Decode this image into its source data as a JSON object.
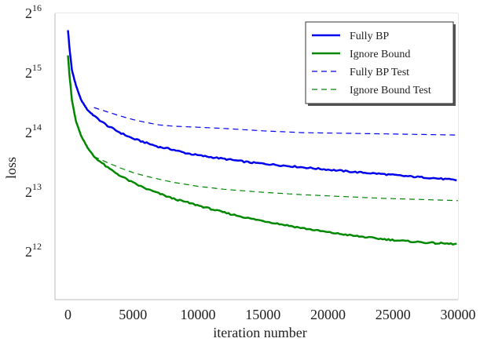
{
  "chart_data": {
    "type": "line",
    "xlabel": "iteration number",
    "ylabel": "loss",
    "xlim": [
      -1000,
      30000
    ],
    "ylim_log2": [
      11.2,
      16
    ],
    "y_scale": "log2",
    "grid": true,
    "legend_position": "top-right",
    "x_ticks": [
      0,
      5000,
      10000,
      15000,
      20000,
      25000,
      30000
    ],
    "x_tick_labels": [
      "0",
      "5000",
      "10000",
      "15000",
      "20000",
      "25000",
      "30000"
    ],
    "y_ticks_log2": [
      12,
      13,
      14,
      15,
      16
    ],
    "y_tick_labels": [
      {
        "base": "2",
        "exp": "12"
      },
      {
        "base": "2",
        "exp": "13"
      },
      {
        "base": "2",
        "exp": "14"
      },
      {
        "base": "2",
        "exp": "15"
      },
      {
        "base": "2",
        "exp": "16"
      }
    ],
    "series": [
      {
        "name": "Fully BP",
        "color": "#0000ee",
        "style": "solid",
        "x": [
          0,
          100,
          300,
          600,
          1000,
          1500,
          2000,
          3000,
          4000,
          5000,
          6000,
          7000,
          8000,
          9000,
          10000,
          12000,
          14000,
          16000,
          18000,
          20000,
          22000,
          24000,
          26000,
          28000,
          30000
        ],
        "y_log2": [
          15.72,
          15.45,
          15.05,
          14.8,
          14.55,
          14.38,
          14.28,
          14.12,
          14.0,
          13.9,
          13.83,
          13.76,
          13.72,
          13.66,
          13.62,
          13.56,
          13.5,
          13.46,
          13.42,
          13.38,
          13.34,
          13.31,
          13.27,
          13.24,
          13.2
        ]
      },
      {
        "name": "Ignore Bound",
        "color": "#008800",
        "style": "solid",
        "x": [
          0,
          100,
          300,
          600,
          1000,
          1500,
          2000,
          3000,
          4000,
          5000,
          6000,
          7000,
          8000,
          9000,
          10000,
          12000,
          14000,
          16000,
          18000,
          20000,
          22000,
          24000,
          26000,
          28000,
          30000
        ],
        "y_log2": [
          15.3,
          15.0,
          14.55,
          14.2,
          13.95,
          13.75,
          13.6,
          13.42,
          13.28,
          13.16,
          13.06,
          12.98,
          12.9,
          12.84,
          12.78,
          12.66,
          12.56,
          12.48,
          12.4,
          12.33,
          12.27,
          12.22,
          12.18,
          12.15,
          12.13
        ]
      },
      {
        "name": "Fully BP Test",
        "color": "#0000ee",
        "style": "dashed",
        "x": [
          2000,
          3000,
          4000,
          5000,
          6000,
          7000,
          8000,
          10000,
          12000,
          15000,
          18000,
          21000,
          24000,
          27000,
          30000
        ],
        "y_log2": [
          14.42,
          14.35,
          14.28,
          14.22,
          14.17,
          14.13,
          14.11,
          14.09,
          14.07,
          14.03,
          14.0,
          13.99,
          13.98,
          13.97,
          13.96
        ]
      },
      {
        "name": "Ignore Bound Test",
        "color": "#008800",
        "style": "dashed",
        "x": [
          2000,
          3000,
          4000,
          5000,
          6000,
          8000,
          10000,
          12000,
          15000,
          18000,
          21000,
          24000,
          27000,
          30000
        ],
        "y_log2": [
          13.6,
          13.5,
          13.41,
          13.33,
          13.27,
          13.17,
          13.1,
          13.05,
          13.0,
          12.96,
          12.93,
          12.9,
          12.88,
          12.86
        ]
      }
    ]
  }
}
